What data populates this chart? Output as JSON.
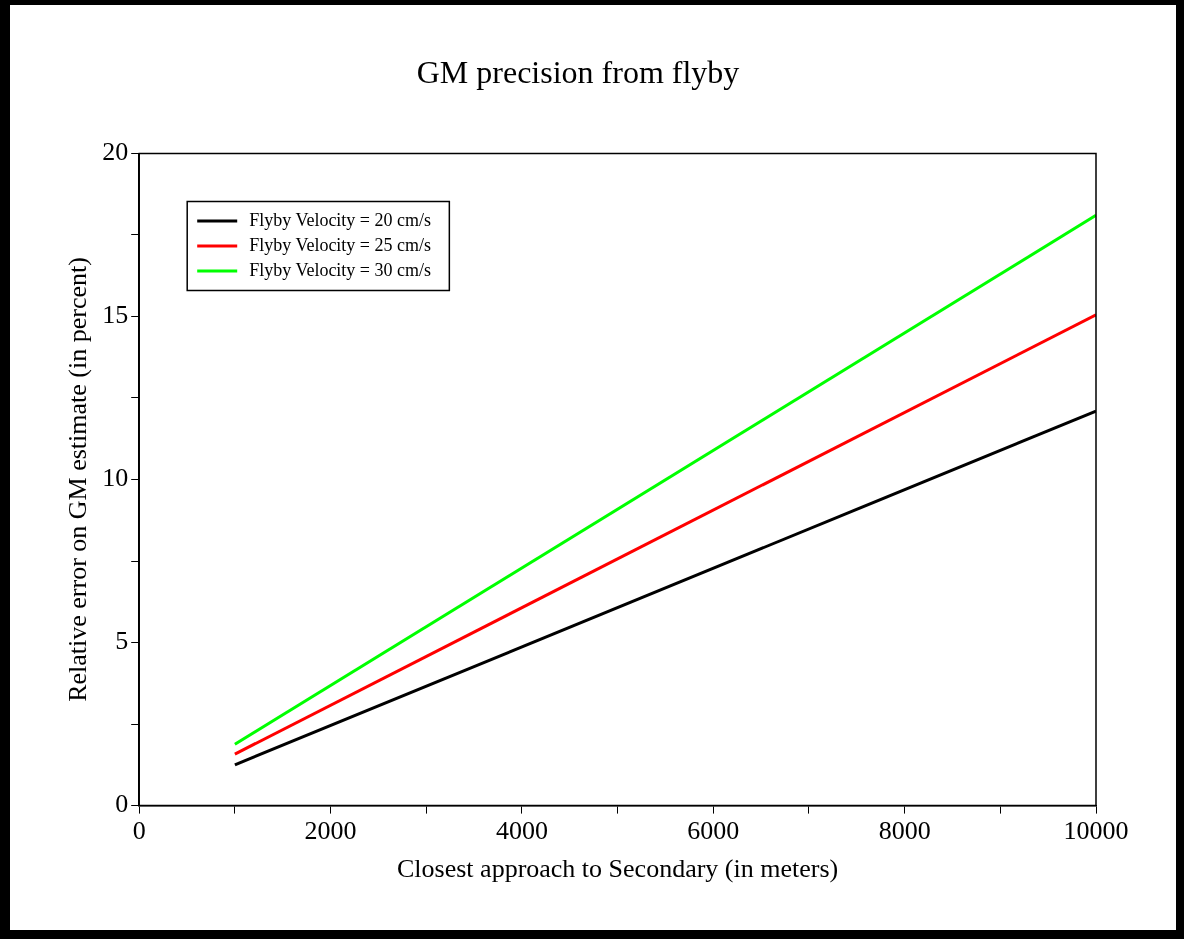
{
  "chart_data": {
    "type": "line",
    "title": "GM precision from flyby",
    "xlabel": "Closest approach to Secondary (in meters)",
    "ylabel": "Relative error on GM estimate (in percent)",
    "x": [
      1000,
      10000
    ],
    "series": [
      {
        "name": "Flyby Velocity = 20 cm/s",
        "color": "#000000",
        "values": [
          1.25,
          12.1
        ]
      },
      {
        "name": "Flyby Velocity = 25 cm/s",
        "color": "#ff0000",
        "values": [
          1.58,
          15.05
        ]
      },
      {
        "name": "Flyby Velocity = 30 cm/s",
        "color": "#00ff00",
        "values": [
          1.88,
          18.1
        ]
      }
    ],
    "xlim": [
      0,
      10000
    ],
    "xticks": [
      0,
      {
        "value": 1000,
        "label": null
      },
      2000,
      {
        "value": 3000,
        "label": null
      },
      4000,
      {
        "value": 5000,
        "label": null
      },
      6000,
      {
        "value": 7000,
        "label": null
      },
      8000,
      {
        "value": 9000,
        "label": null
      },
      10000
    ],
    "ylim": [
      0,
      20
    ],
    "yticks": [
      0,
      {
        "value": 2.5,
        "label": null
      },
      5,
      {
        "value": 7.5,
        "label": null
      },
      10,
      {
        "value": 12.5,
        "label": null
      },
      15,
      {
        "value": 17.5,
        "label": null
      },
      20
    ],
    "grid": false,
    "legend": "top left",
    "marker": "none",
    "line_style": "solid"
  }
}
